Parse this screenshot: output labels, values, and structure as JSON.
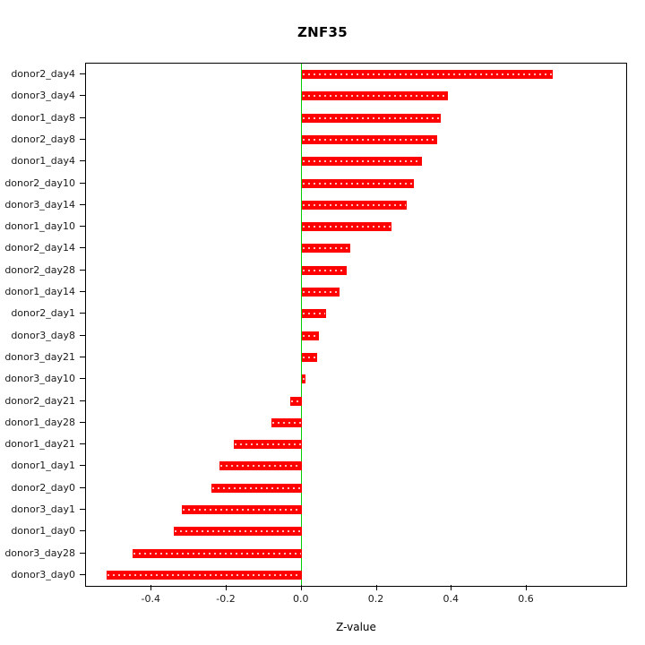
{
  "title": "ZNF35",
  "chart_data": {
    "type": "bar",
    "orientation": "horizontal",
    "title": "ZNF35",
    "xlabel": "Z-value",
    "ylabel": "",
    "grid": false,
    "legend": "none",
    "bar_color": "#ff0000",
    "zero_line_color": "#00cc00",
    "axis_color": "#000000",
    "xlim": [
      -0.575,
      0.865
    ],
    "xticks": [
      -0.4,
      -0.2,
      0.0,
      0.2,
      0.4,
      0.6
    ],
    "xtick_labels": [
      "-0.4",
      "-0.2",
      "0.0",
      "0.2",
      "0.4",
      "0.6"
    ],
    "categories": [
      "donor2_day4",
      "donor3_day4",
      "donor1_day8",
      "donor2_day8",
      "donor1_day4",
      "donor2_day10",
      "donor3_day14",
      "donor1_day10",
      "donor2_day14",
      "donor2_day28",
      "donor1_day14",
      "donor2_day1",
      "donor3_day8",
      "donor3_day21",
      "donor3_day10",
      "donor2_day21",
      "donor1_day28",
      "donor1_day21",
      "donor1_day1",
      "donor2_day0",
      "donor3_day1",
      "donor1_day0",
      "donor3_day28",
      "donor3_day0"
    ],
    "values": [
      0.67,
      0.39,
      0.37,
      0.36,
      0.32,
      0.3,
      0.28,
      0.24,
      0.13,
      0.12,
      0.1,
      0.065,
      0.045,
      0.04,
      0.01,
      -0.03,
      -0.08,
      -0.18,
      -0.22,
      -0.24,
      -0.32,
      -0.34,
      -0.45,
      -0.52
    ]
  }
}
